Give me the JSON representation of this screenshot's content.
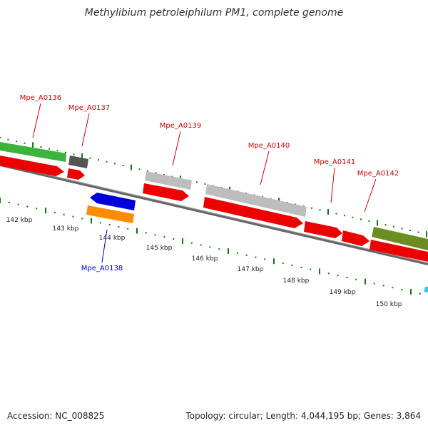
{
  "title": "Methylibium petroleiphilum PM1, complete genome",
  "footer": {
    "accession": "Accession: NC_008825",
    "topology": "Topology: circular; Length: 4,044,195 bp; Genes: 3,864"
  },
  "kbp_ticks": [
    {
      "value": 142,
      "label": "142 kbp"
    },
    {
      "value": 143,
      "label": "143 kbp"
    },
    {
      "value": 144,
      "label": "144 kbp"
    },
    {
      "value": 145,
      "label": "145 kbp"
    },
    {
      "value": 146,
      "label": "146 kbp"
    },
    {
      "value": 147,
      "label": "147 kbp"
    },
    {
      "value": 148,
      "label": "148 kbp"
    },
    {
      "value": 149,
      "label": "149 kbp"
    },
    {
      "value": 150,
      "label": "150 kbp"
    }
  ],
  "gene_labels": [
    {
      "id": "Mpe_A0136",
      "color": "#cc0000"
    },
    {
      "id": "Mpe_A0137",
      "color": "#cc0000"
    },
    {
      "id": "Mpe_A0138",
      "color": "#0000cc"
    },
    {
      "id": "Mpe_A0139",
      "color": "#cc0000"
    },
    {
      "id": "Mpe_A0140",
      "color": "#cc0000"
    },
    {
      "id": "Mpe_A0141",
      "color": "#cc0000"
    },
    {
      "id": "Mpe_A0142",
      "color": "#cc0000"
    }
  ],
  "colors": {
    "cds_forward": "#ee0000",
    "cds_reverse": "#0000dd",
    "tick": "#117711",
    "backbone": "#888888"
  }
}
